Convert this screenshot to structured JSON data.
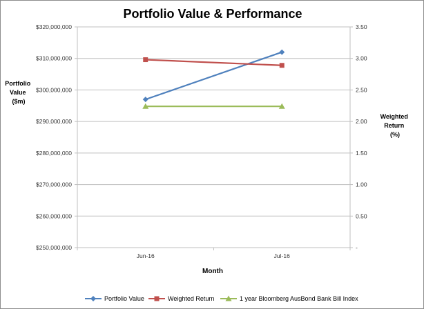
{
  "chart_data": {
    "type": "line",
    "title": "Portfolio Value & Performance",
    "xlabel": "Month",
    "ylabel_left": [
      "Portfolio",
      "Value",
      "($m)"
    ],
    "ylabel_right": [
      "Weighted",
      "Return",
      "(%)"
    ],
    "categories": [
      "Jun-16",
      "Jul-16"
    ],
    "ylim_left": [
      250000000,
      320000000
    ],
    "ylim_right": [
      0,
      3.5
    ],
    "yticks_left": [
      "$250,000,000",
      "$260,000,000",
      "$270,000,000",
      "$280,000,000",
      "$290,000,000",
      "$300,000,000",
      "$310,000,000",
      "$320,000,000"
    ],
    "yticks_right": [
      "-",
      "0.50",
      "1.00",
      "1.50",
      "2.00",
      "2.50",
      "3.00",
      "3.50"
    ],
    "grid": true,
    "legend_position": "bottom",
    "series": [
      {
        "name": "Portfolio Value",
        "axis": "left",
        "values": [
          297000000,
          312000000
        ],
        "color": "#4f81bd",
        "marker": "diamond"
      },
      {
        "name": "Weighted Return",
        "axis": "right",
        "values": [
          2.98,
          2.89
        ],
        "color": "#c0504d",
        "marker": "square"
      },
      {
        "name": "1 year Bloomberg AusBond Bank Bill Index",
        "axis": "right",
        "values": [
          2.24,
          2.24
        ],
        "color": "#9bbb59",
        "marker": "triangle"
      }
    ]
  }
}
